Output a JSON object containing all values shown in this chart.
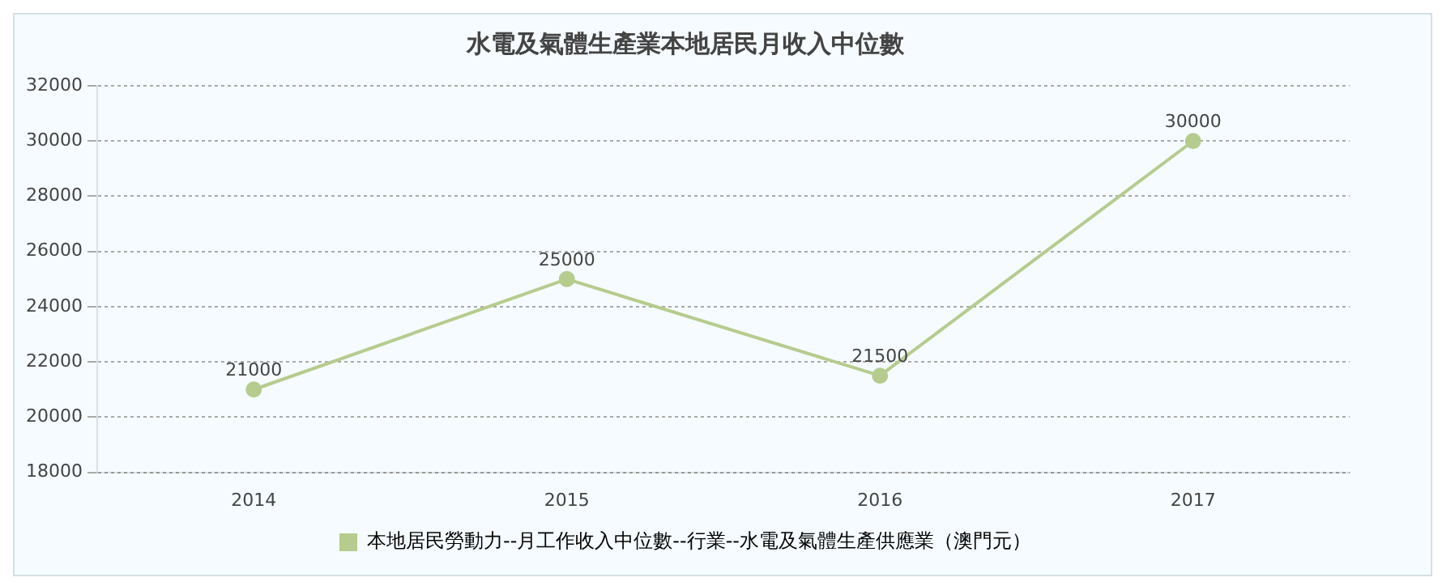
{
  "chart_data": {
    "type": "line",
    "title": "水電及氣體生產業本地居民月收入中位數",
    "categories": [
      "2014",
      "2015",
      "2016",
      "2017"
    ],
    "series": [
      {
        "name": "本地居民勞動力--月工作收入中位數--行業--水電及氣體生產供應業（澳門元）",
        "color": "#b5cc8e",
        "values": [
          21000,
          25000,
          21500,
          30000
        ]
      }
    ],
    "ylim": [
      18000,
      32000
    ],
    "yticks": [
      18000,
      20000,
      22000,
      24000,
      26000,
      28000,
      30000,
      32000
    ],
    "grid": "y",
    "legend": "bottom",
    "marker": "circle",
    "line_style": "solid",
    "data_labels": true
  }
}
